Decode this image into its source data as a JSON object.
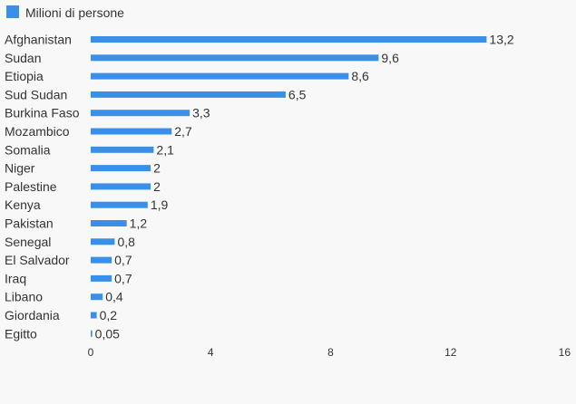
{
  "chart_data": {
    "type": "bar",
    "orientation": "horizontal",
    "categories": [
      "Afghanistan",
      "Sudan",
      "Etiopia",
      "Sud Sudan",
      "Burkina Faso",
      "Mozambico",
      "Somalia",
      "Niger",
      "Palestine",
      "Kenya",
      "Pakistan",
      "Senegal",
      "El Salvador",
      "Iraq",
      "Libano",
      "Giordania",
      "Egitto"
    ],
    "series": [
      {
        "name": "Milioni di persone",
        "values": [
          13.2,
          9.6,
          8.6,
          6.5,
          3.3,
          2.7,
          2.1,
          2,
          2,
          1.9,
          1.2,
          0.8,
          0.7,
          0.7,
          0.4,
          0.2,
          0.05
        ],
        "labels": [
          "13,2",
          "9,6",
          "8,6",
          "6,5",
          "3,3",
          "2,7",
          "2,1",
          "2",
          "2",
          "1,9",
          "1,2",
          "0,8",
          "0,7",
          "0,7",
          "0,4",
          "0,2",
          "0,05"
        ]
      }
    ],
    "xlim": [
      0,
      16
    ],
    "xticks": [
      "0",
      "4",
      "8",
      "12",
      "16"
    ],
    "legend_position": "top-left",
    "grid": false,
    "title": "",
    "xlabel": "",
    "ylabel": ""
  },
  "colors": {
    "bar": "#3a8fe8",
    "text": "#333333",
    "background": "#f8f8f8"
  }
}
